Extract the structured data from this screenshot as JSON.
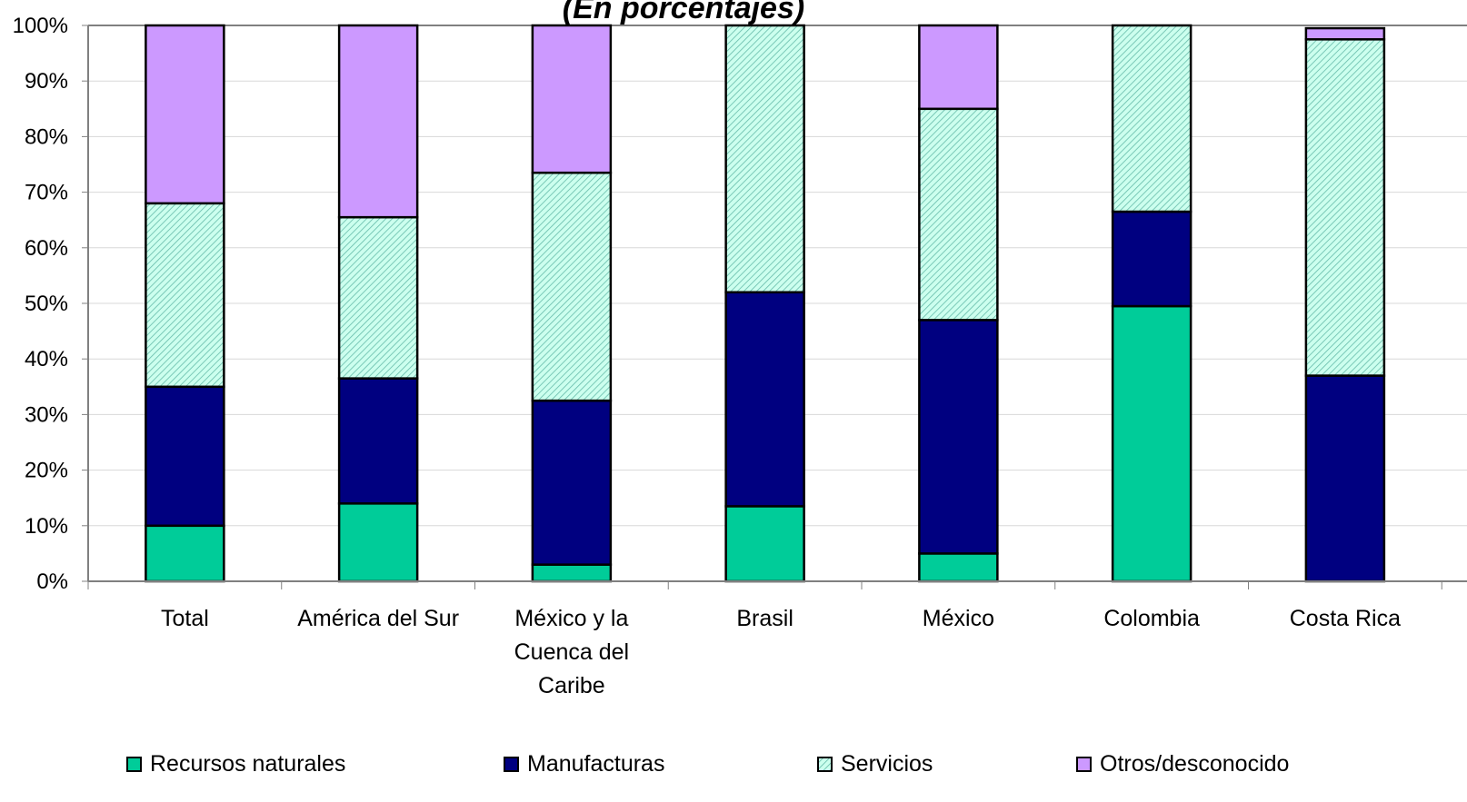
{
  "chart_data": {
    "type": "bar",
    "stacked": true,
    "title": "(En porcentajes)",
    "xlabel": "",
    "ylabel": "",
    "ylim": [
      0,
      100
    ],
    "yticks": [
      "0%",
      "10%",
      "20%",
      "30%",
      "40%",
      "50%",
      "60%",
      "70%",
      "80%",
      "90%",
      "100%"
    ],
    "grid": true,
    "legend_position": "bottom",
    "categories": [
      [
        "Total"
      ],
      [
        "América del Sur"
      ],
      [
        "México y la",
        "Cuenca del",
        "Caribe"
      ],
      [
        "Brasil"
      ],
      [
        "México"
      ],
      [
        "Colombia"
      ],
      [
        "Costa Rica"
      ]
    ],
    "series": [
      {
        "name": "Recursos naturales",
        "color": "#00cc99",
        "pattern": "solid",
        "values": [
          10,
          14,
          3,
          13.5,
          5,
          49.5,
          0
        ]
      },
      {
        "name": "Manufacturas",
        "color": "#000080",
        "pattern": "solid",
        "values": [
          25,
          22.5,
          29.5,
          38.5,
          42,
          17,
          37
        ]
      },
      {
        "name": "Servicios",
        "color": "#ccffee",
        "pattern": "hatch",
        "values": [
          33,
          29,
          41,
          48,
          38,
          33.5,
          60.5
        ]
      },
      {
        "name": "Otros/desconocido",
        "color": "#cc99ff",
        "pattern": "solid",
        "values": [
          32,
          34.5,
          26.5,
          0,
          15,
          0,
          2
        ]
      }
    ]
  }
}
